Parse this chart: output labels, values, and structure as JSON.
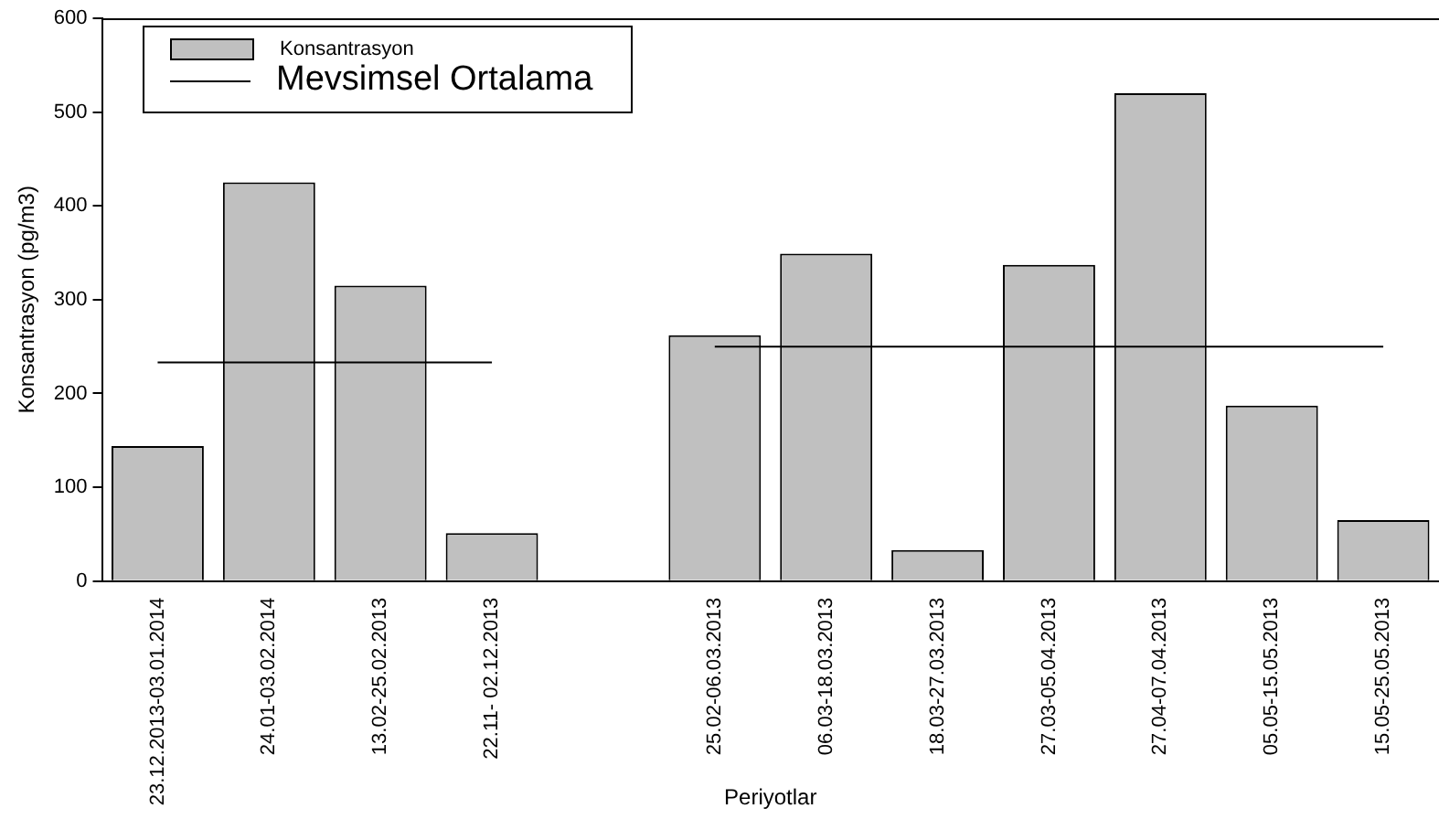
{
  "chart_data": {
    "type": "bar",
    "xlabel": "Periyotlar",
    "ylabel": "Konsantrasyon (pg/m3)",
    "categories": [
      "23.12.2013-03.01.2014",
      "24.01-03.02.2014",
      "13.02-25.02.2013",
      "22.11- 02.12.2013",
      null,
      "25.02-06.03.2013",
      "06.03-18.03.2013",
      "18.03-27.03.2013",
      "27.03-05.04.2013",
      "27.04-07.04.2013",
      "05.05-15.05.2013",
      "15.05-25.05.2013"
    ],
    "series": [
      {
        "name": "Konsantrasyon",
        "color": "#c0c0c0",
        "values": [
          144,
          425,
          315,
          51,
          null,
          262,
          349,
          33,
          337,
          520,
          187,
          65
        ]
      },
      {
        "name": "Mevsimsel Ortalama",
        "type": "line",
        "color": "#000000",
        "values": [
          233,
          233,
          233,
          233,
          null,
          250,
          250,
          250,
          250,
          250,
          250,
          250
        ]
      }
    ],
    "ylim": [
      0,
      600
    ],
    "yticks": [
      0,
      100,
      200,
      300,
      400,
      500,
      600
    ],
    "grid": false,
    "legend": "top left"
  }
}
